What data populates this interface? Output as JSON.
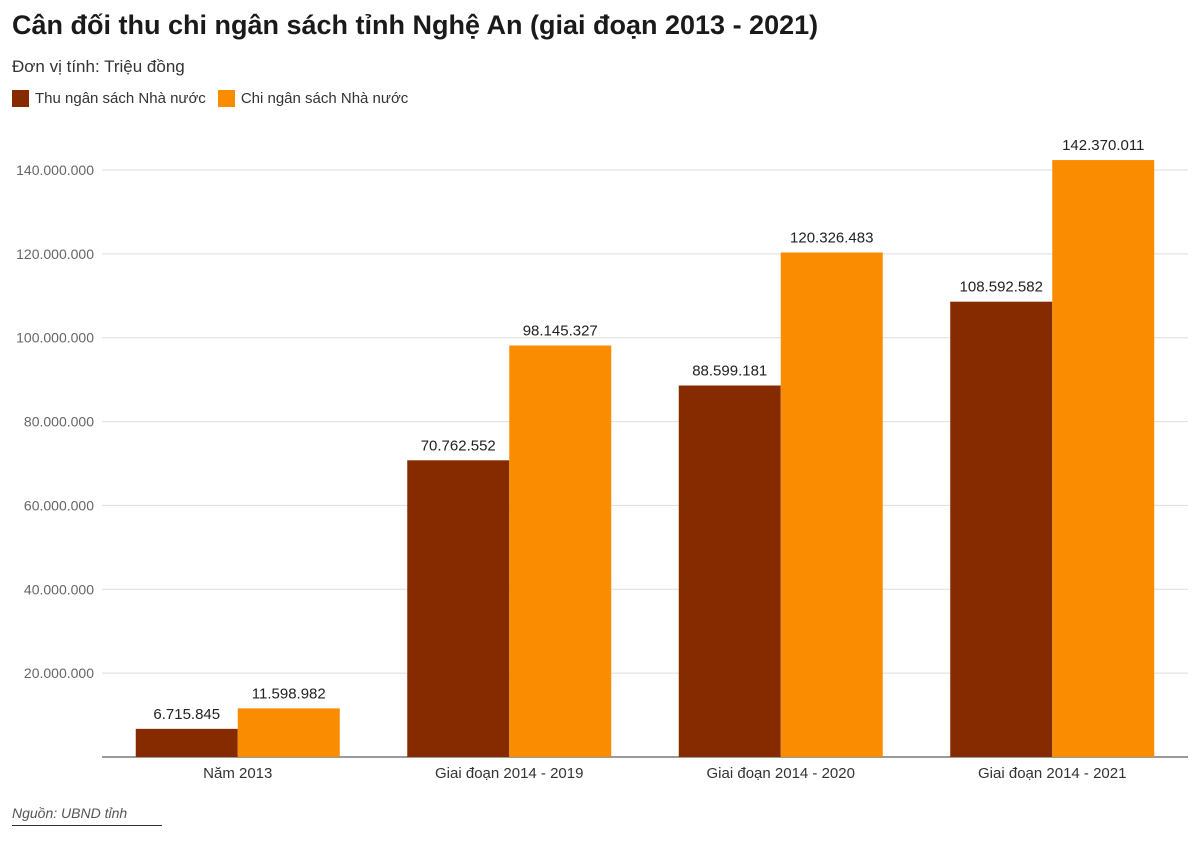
{
  "chart_data": {
    "type": "bar",
    "title": "Cân đối thu chi ngân sách tỉnh Nghệ An (giai đoạn 2013 - 2021)",
    "subtitle": "Đơn vị tính: Triệu đồng",
    "source": "Nguồn: UBND tỉnh",
    "xlabel": "",
    "ylabel": "",
    "ylim": [
      0,
      150000000
    ],
    "yticks": [
      20000000,
      40000000,
      60000000,
      80000000,
      100000000,
      120000000,
      140000000
    ],
    "ytick_labels": [
      "20.000.000",
      "40.000.000",
      "60.000.000",
      "80.000.000",
      "100.000.000",
      "120.000.000",
      "140.000.000"
    ],
    "grid": true,
    "legend_position": "top-left",
    "categories": [
      "Năm 2013",
      "Giai đoạn 2014 - 2019",
      "Giai đoạn 2014 - 2020",
      "Giai đoạn 2014 - 2021"
    ],
    "series": [
      {
        "name": "Thu ngân sách Nhà nước",
        "color": "#862a00",
        "values": [
          6715845,
          70762552,
          88599181,
          108592582
        ],
        "labels": [
          "6.715.845",
          "70.762.552",
          "88.599.181",
          "108.592.582"
        ]
      },
      {
        "name": "Chi ngân sách Nhà nước",
        "color": "#f98c00",
        "values": [
          11598982,
          98145327,
          120326483,
          142370011
        ],
        "labels": [
          "11.598.982",
          "98.145.327",
          "120.326.483",
          "142.370.011"
        ]
      }
    ]
  }
}
